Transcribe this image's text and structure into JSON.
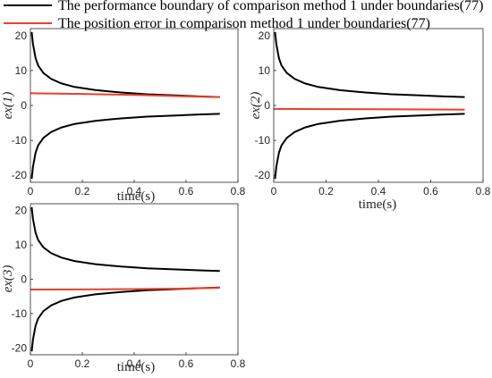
{
  "legend": {
    "entries": [
      {
        "label": "The performance boundary of comparison method 1 under boundaries(77)",
        "color": "#000000"
      },
      {
        "label": "The position error in comparison method 1 under boundaries(77)",
        "color": "#e8412c"
      }
    ]
  },
  "chart_data": [
    {
      "type": "line",
      "title": "",
      "xlabel": "time(s)",
      "ylabel": "ex(1)",
      "xlim": [
        0,
        0.8
      ],
      "ylim": [
        -22,
        22
      ],
      "xticks": [
        "0",
        "0.2",
        "0.4",
        "0.6",
        "0.8"
      ],
      "yticks": [
        "-20",
        "-10",
        "0",
        "10",
        "20"
      ],
      "grid": false,
      "series": [
        {
          "name": "The performance boundary of comparison method 1 under boundaries(77)",
          "color": "#000000",
          "x": [
            0.005,
            0.01,
            0.02,
            0.03,
            0.05,
            0.08,
            0.12,
            0.17,
            0.25,
            0.35,
            0.45,
            0.55,
            0.65,
            0.73
          ],
          "y": [
            21,
            17.5,
            13.5,
            11.4,
            9.3,
            7.6,
            6.3,
            5.3,
            4.4,
            3.7,
            3.2,
            2.9,
            2.6,
            2.4
          ]
        },
        {
          "name": "",
          "color": "#000000",
          "x": [
            0.005,
            0.01,
            0.02,
            0.03,
            0.05,
            0.08,
            0.12,
            0.17,
            0.25,
            0.35,
            0.45,
            0.55,
            0.65,
            0.73
          ],
          "y": [
            -21,
            -17.5,
            -13.5,
            -11.4,
            -9.3,
            -7.6,
            -6.3,
            -5.3,
            -4.4,
            -3.7,
            -3.2,
            -2.9,
            -2.6,
            -2.4
          ]
        },
        {
          "name": "The position error in comparison method 1 under boundaries(77)",
          "color": "#e8412c",
          "x": [
            0,
            0.2,
            0.4,
            0.5,
            0.6,
            0.73
          ],
          "y": [
            3.5,
            3.3,
            3.0,
            2.8,
            2.6,
            2.4
          ]
        }
      ]
    },
    {
      "type": "line",
      "title": "",
      "xlabel": "time(s)",
      "ylabel": "ex(2)",
      "xlim": [
        0,
        0.8
      ],
      "ylim": [
        -22,
        22
      ],
      "xticks": [
        "0",
        "0.2",
        "0.4",
        "0.6",
        "0.8"
      ],
      "yticks": [
        "-20",
        "-10",
        "0",
        "10",
        "20"
      ],
      "grid": false,
      "series": [
        {
          "name": "",
          "color": "#000000",
          "x": [
            0.005,
            0.01,
            0.02,
            0.03,
            0.05,
            0.08,
            0.12,
            0.17,
            0.25,
            0.35,
            0.45,
            0.55,
            0.65,
            0.73
          ],
          "y": [
            21,
            17.5,
            13.5,
            11.4,
            9.3,
            7.6,
            6.3,
            5.3,
            4.4,
            3.7,
            3.2,
            2.9,
            2.6,
            2.4
          ]
        },
        {
          "name": "",
          "color": "#000000",
          "x": [
            0.005,
            0.01,
            0.02,
            0.03,
            0.05,
            0.08,
            0.12,
            0.17,
            0.25,
            0.35,
            0.45,
            0.55,
            0.65,
            0.73
          ],
          "y": [
            -21,
            -17.5,
            -13.5,
            -11.4,
            -9.3,
            -7.6,
            -6.3,
            -5.3,
            -4.4,
            -3.7,
            -3.2,
            -2.9,
            -2.6,
            -2.4
          ]
        },
        {
          "name": "",
          "color": "#e8412c",
          "x": [
            0,
            0.2,
            0.4,
            0.6,
            0.73
          ],
          "y": [
            -1.0,
            -1.05,
            -1.1,
            -1.15,
            -1.2
          ]
        }
      ]
    },
    {
      "type": "line",
      "title": "",
      "xlabel": "time(s)",
      "ylabel": "ex(3)",
      "xlim": [
        0,
        0.8
      ],
      "ylim": [
        -22,
        22
      ],
      "xticks": [
        "0",
        "0.2",
        "0.4",
        "0.6",
        "0.8"
      ],
      "yticks": [
        "-20",
        "-10",
        "0",
        "10",
        "20"
      ],
      "grid": false,
      "series": [
        {
          "name": "",
          "color": "#000000",
          "x": [
            0.005,
            0.01,
            0.02,
            0.03,
            0.05,
            0.08,
            0.12,
            0.17,
            0.25,
            0.35,
            0.45,
            0.55,
            0.65,
            0.73
          ],
          "y": [
            21,
            17.5,
            13.5,
            11.4,
            9.3,
            7.6,
            6.3,
            5.3,
            4.4,
            3.7,
            3.2,
            2.9,
            2.6,
            2.4
          ]
        },
        {
          "name": "",
          "color": "#000000",
          "x": [
            0.005,
            0.01,
            0.02,
            0.03,
            0.05,
            0.08,
            0.12,
            0.17,
            0.25,
            0.35,
            0.45,
            0.55,
            0.65,
            0.73
          ],
          "y": [
            -21,
            -17.5,
            -13.5,
            -11.4,
            -9.3,
            -7.6,
            -6.3,
            -5.3,
            -4.4,
            -3.7,
            -3.2,
            -2.9,
            -2.6,
            -2.4
          ]
        },
        {
          "name": "",
          "color": "#e8412c",
          "x": [
            0,
            0.2,
            0.4,
            0.6,
            0.73
          ],
          "y": [
            -3.0,
            -2.95,
            -2.85,
            -2.7,
            -2.5
          ]
        }
      ]
    }
  ]
}
